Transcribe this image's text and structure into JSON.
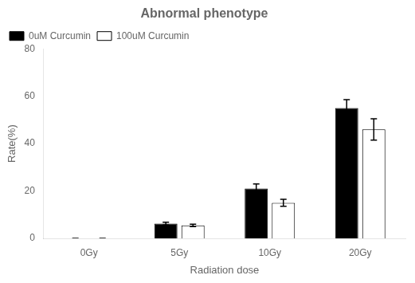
{
  "chart_data": {
    "type": "bar",
    "title": "Abnormal phenotype",
    "xlabel": "Radiation dose",
    "ylabel": "Rate(%)",
    "categories": [
      "0Gy",
      "5Gy",
      "10Gy",
      "20Gy"
    ],
    "series": [
      {
        "name": "0uM Curcumin",
        "color": "#000000",
        "values": [
          0,
          6.2,
          21.0,
          55.0
        ],
        "errors": [
          0,
          0.6,
          2.0,
          3.5
        ]
      },
      {
        "name": "100uM Curcumin",
        "color": "#ffffff",
        "values": [
          0,
          5.5,
          15.0,
          46.0
        ],
        "errors": [
          0,
          0.5,
          1.5,
          4.5
        ]
      }
    ],
    "ylim": [
      0,
      80
    ],
    "yticks": [
      0,
      20,
      40,
      60,
      80
    ],
    "grid": false,
    "legend": "upper left"
  }
}
